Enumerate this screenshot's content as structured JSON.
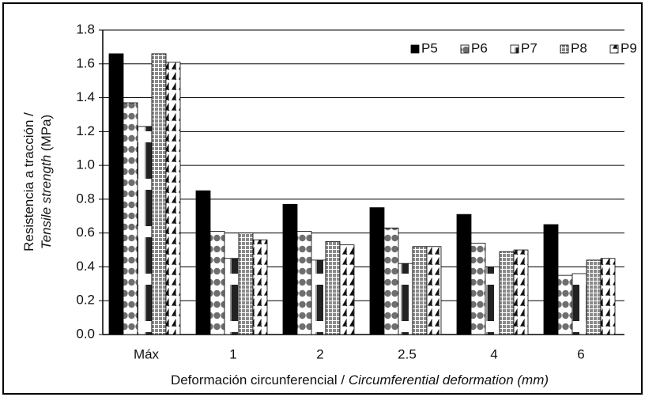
{
  "chart_data": {
    "type": "bar",
    "y_label": [
      "Resistencia a tracción /",
      "Tensile strength",
      "(MPa)"
    ],
    "x_label": [
      "Deformación circunferencial /",
      "Circumferential deformation (mm)"
    ],
    "categories": [
      "Máx",
      "1",
      "2",
      "2.5",
      "4",
      "6"
    ],
    "series": [
      {
        "name": "P5",
        "color": "#000000",
        "values": [
          1.66,
          0.85,
          0.77,
          0.75,
          0.71,
          0.65
        ]
      },
      {
        "name": "P6",
        "color": "#6e6e6e",
        "values": [
          1.37,
          0.61,
          0.61,
          0.63,
          0.54,
          0.35
        ]
      },
      {
        "name": "P7",
        "color": "#222222",
        "values": [
          1.23,
          0.45,
          0.44,
          0.42,
          0.4,
          0.36
        ]
      },
      {
        "name": "P8",
        "color": "#8a8a8a",
        "values": [
          1.66,
          0.6,
          0.55,
          0.52,
          0.49,
          0.44
        ]
      },
      {
        "name": "P9",
        "color": "#111111",
        "values": [
          1.61,
          0.56,
          0.53,
          0.52,
          0.5,
          0.45
        ]
      }
    ],
    "ylim": [
      0,
      1.8
    ],
    "yticks": [
      {
        "value": 0,
        "label": "0.0"
      },
      0.2,
      0.4,
      0.6,
      0.8,
      {
        "value": 1,
        "label": "1.0"
      },
      1.2,
      1.4,
      1.6,
      1.8
    ],
    "grid": true,
    "legend": "upper right"
  }
}
